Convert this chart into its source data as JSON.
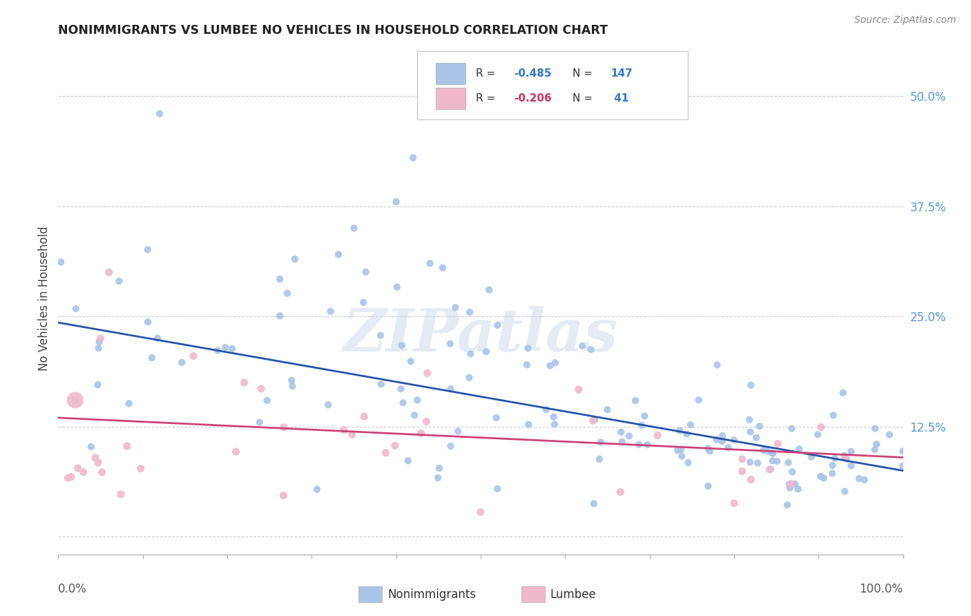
{
  "title": "NONIMMIGRANTS VS LUMBEE NO VEHICLES IN HOUSEHOLD CORRELATION CHART",
  "source": "Source: ZipAtlas.com",
  "ylabel": "No Vehicles in Household",
  "ytick_values": [
    0.0,
    0.125,
    0.25,
    0.375,
    0.5
  ],
  "ytick_labels": [
    "",
    "12.5%",
    "25.0%",
    "37.5%",
    "50.0%"
  ],
  "xlim": [
    0.0,
    1.0
  ],
  "ylim": [
    -0.02,
    0.56
  ],
  "blue_color": "#aac4e8",
  "blue_edge": "#aac4e8",
  "blue_line_color": "#2255aa",
  "pink_color": "#f0b8cc",
  "pink_edge": "#f0b8cc",
  "pink_line_color": "#cc4477",
  "marker_size_blue": 55,
  "marker_size_pink": 65,
  "watermark": "ZIPatlas",
  "background_color": "#ffffff",
  "grid_color": "#cccccc",
  "right_tick_color": "#5599dd",
  "legend_R1": "-0.485",
  "legend_N1": "147",
  "legend_R2": "-0.206",
  "legend_N2": "41",
  "blue_line_y0": 0.243,
  "blue_line_y1": 0.075,
  "pink_line_y0": 0.135,
  "pink_line_y1": 0.09
}
